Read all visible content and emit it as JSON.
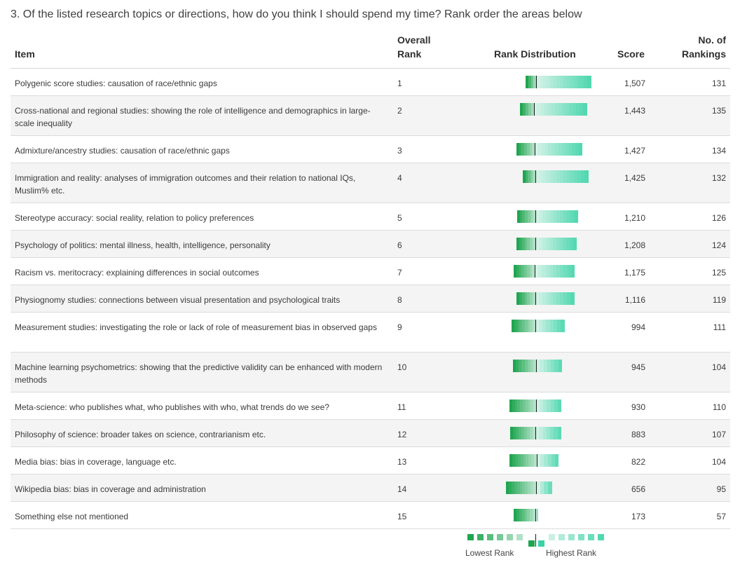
{
  "question": "3. Of the listed research topics or directions, how do you think I should spend my time? Rank order the areas below",
  "headers": {
    "item": "Item",
    "rank_line1": "Overall",
    "rank_line2": "Rank",
    "distribution": "Rank Distribution",
    "score": "Score",
    "count_line1": "No. of",
    "count_line2": "Rankings"
  },
  "rows": [
    {
      "item": "Polygenic score studies: causation of race/ethnic gaps",
      "rank": "1",
      "score": "1,507",
      "count": "131"
    },
    {
      "item": "Cross-national and regional studies: showing the role of intelligence and demographics in large-scale inequality",
      "rank": "2",
      "score": "1,443",
      "count": "135"
    },
    {
      "item": "Admixture/ancestry studies: causation of race/ethnic gaps",
      "rank": "3",
      "score": "1,427",
      "count": "134"
    },
    {
      "item": "Immigration and reality: analyses of immigration outcomes and their relation to national IQs, Muslim% etc.",
      "rank": "4",
      "score": "1,425",
      "count": "132"
    },
    {
      "item": "Stereotype accuracy: social reality, relation to policy preferences",
      "rank": "5",
      "score": "1,210",
      "count": "126"
    },
    {
      "item": "Psychology of politics: mental illness, health, intelligence, personality",
      "rank": "6",
      "score": "1,208",
      "count": "124"
    },
    {
      "item": "Racism vs. meritocracy: explaining differences in social outcomes",
      "rank": "7",
      "score": "1,175",
      "count": "125"
    },
    {
      "item": "Physiognomy studies: connections between visual presentation and psychological traits",
      "rank": "8",
      "score": "1,116",
      "count": "119"
    },
    {
      "item": "Measurement studies: investigating the role or lack of role of measurement bias in observed gaps",
      "rank": "9",
      "score": "994",
      "count": "111"
    },
    {
      "item": "Machine learning psychometrics: showing that the predictive validity can be enhanced with modern methods",
      "rank": "10",
      "score": "945",
      "count": "104"
    },
    {
      "item": "Meta-science: who publishes what, who publishes with who, what trends do we see?",
      "rank": "11",
      "score": "930",
      "count": "110"
    },
    {
      "item": "Philosophy of science: broader takes on science, contrarianism etc.",
      "rank": "12",
      "score": "883",
      "count": "107"
    },
    {
      "item": "Media bias: bias in coverage, language etc.",
      "rank": "13",
      "score": "822",
      "count": "104"
    },
    {
      "item": "Wikipedia bias: bias in coverage and administration",
      "rank": "14",
      "score": "656",
      "count": "95"
    },
    {
      "item": "Something else not mentioned",
      "rank": "15",
      "score": "173",
      "count": "57"
    }
  ],
  "legend": {
    "lowest": "Lowest Rank",
    "highest": "Highest Rank"
  },
  "colors": {
    "low_dark": "#1fa550",
    "mid_light": "#e3f5ee",
    "high_dark": "#39d3a6",
    "midline": "#1a1a1a"
  }
}
